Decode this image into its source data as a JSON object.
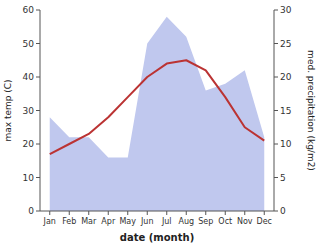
{
  "chart_data": {
    "type": "line",
    "categories": [
      "Jan",
      "Feb",
      "Mar",
      "Apr",
      "May",
      "Jun",
      "Jul",
      "Aug",
      "Sep",
      "Oct",
      "Nov",
      "Dec"
    ],
    "series": [
      {
        "type": "area",
        "axis": "y2",
        "color": "#c0c8ee",
        "values": [
          14,
          11,
          11,
          8,
          8,
          25,
          29,
          26,
          18,
          19,
          21,
          11
        ]
      },
      {
        "type": "line",
        "color": "#bb3333",
        "values": [
          17,
          20,
          23,
          28,
          34,
          40,
          44,
          45,
          42,
          34,
          25,
          21
        ]
      }
    ],
    "xlabel": "date (month)",
    "ylabel": "max temp (C)",
    "y2label": "med. precipitation (kg/m2)",
    "ylim": [
      0,
      60
    ],
    "yticks": [
      0,
      10,
      20,
      30,
      40,
      50,
      60
    ],
    "y2lim": [
      0,
      30
    ],
    "y2ticks": [
      0,
      5,
      10,
      15,
      20,
      25,
      30
    ],
    "grid": false
  }
}
